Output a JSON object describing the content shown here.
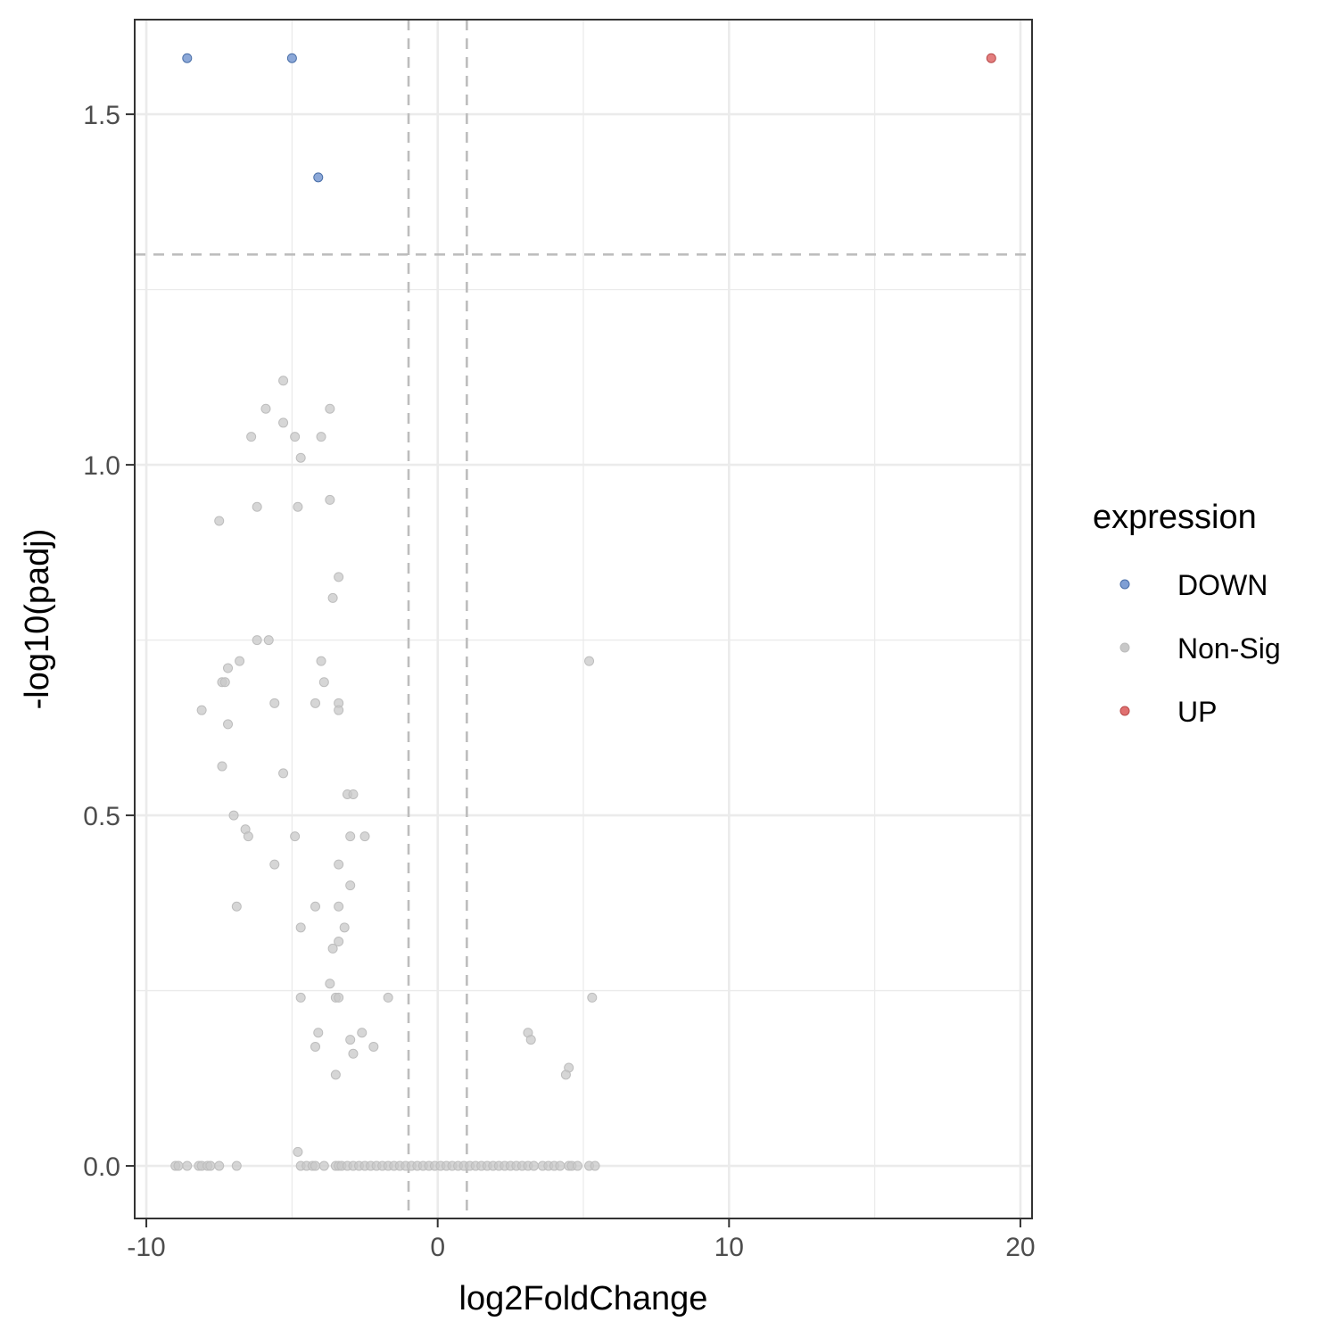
{
  "chart_data": {
    "type": "scatter",
    "title": "",
    "xlabel": "log2FoldChange",
    "ylabel": "-log10(padj)",
    "xlim": [
      -10.4,
      20.4
    ],
    "ylim": [
      -0.075,
      1.635
    ],
    "xticks": [
      -10,
      0,
      10,
      20
    ],
    "xtick_labels": [
      "-10",
      "0",
      "10",
      "20"
    ],
    "yticks": [
      0.0,
      0.5,
      1.0,
      1.5
    ],
    "ytick_labels": [
      "0.0",
      "0.5",
      "1.0",
      "1.5"
    ],
    "grid": true,
    "thresholds": {
      "log2fc": [
        -1,
        1
      ],
      "neg_log10_padj": 1.3
    },
    "legend": {
      "title": "expression",
      "placement": "right"
    },
    "series": [
      {
        "name": "DOWN",
        "color": "#7f9fd4",
        "points": [
          [
            -8.6,
            1.58
          ],
          [
            -5.0,
            1.58
          ],
          [
            -4.1,
            1.41
          ]
        ]
      },
      {
        "name": "Non-Sig",
        "color": "#c8c8c8",
        "points": [
          [
            -5.3,
            1.12
          ],
          [
            -5.9,
            1.08
          ],
          [
            -3.7,
            1.08
          ],
          [
            -5.3,
            1.06
          ],
          [
            -6.4,
            1.04
          ],
          [
            -4.9,
            1.04
          ],
          [
            -4.0,
            1.04
          ],
          [
            -4.7,
            1.01
          ],
          [
            -3.7,
            0.95
          ],
          [
            -6.2,
            0.94
          ],
          [
            -4.8,
            0.94
          ],
          [
            -7.5,
            0.92
          ],
          [
            -3.4,
            0.84
          ],
          [
            -3.6,
            0.81
          ],
          [
            -6.2,
            0.75
          ],
          [
            -5.8,
            0.75
          ],
          [
            -6.8,
            0.72
          ],
          [
            -7.2,
            0.71
          ],
          [
            5.2,
            0.72
          ],
          [
            -4.0,
            0.72
          ],
          [
            -7.4,
            0.69
          ],
          [
            -7.3,
            0.69
          ],
          [
            -3.9,
            0.69
          ],
          [
            -5.6,
            0.66
          ],
          [
            -4.2,
            0.66
          ],
          [
            -3.4,
            0.66
          ],
          [
            -3.4,
            0.65
          ],
          [
            -8.1,
            0.65
          ],
          [
            -7.2,
            0.63
          ],
          [
            -7.4,
            0.57
          ],
          [
            -5.3,
            0.56
          ],
          [
            -3.1,
            0.53
          ],
          [
            -2.9,
            0.53
          ],
          [
            -7.0,
            0.5
          ],
          [
            -6.6,
            0.48
          ],
          [
            -6.5,
            0.47
          ],
          [
            -4.9,
            0.47
          ],
          [
            -3.0,
            0.47
          ],
          [
            -2.5,
            0.47
          ],
          [
            -3.4,
            0.43
          ],
          [
            -5.6,
            0.43
          ],
          [
            -3.0,
            0.4
          ],
          [
            -6.9,
            0.37
          ],
          [
            -4.2,
            0.37
          ],
          [
            -3.4,
            0.37
          ],
          [
            -4.7,
            0.34
          ],
          [
            -3.2,
            0.34
          ],
          [
            -3.4,
            0.32
          ],
          [
            -3.6,
            0.31
          ],
          [
            -3.7,
            0.26
          ],
          [
            -4.7,
            0.24
          ],
          [
            -3.5,
            0.24
          ],
          [
            -3.4,
            0.24
          ],
          [
            -1.7,
            0.24
          ],
          [
            5.3,
            0.24
          ],
          [
            -4.1,
            0.19
          ],
          [
            -2.6,
            0.19
          ],
          [
            3.1,
            0.19
          ],
          [
            -3.0,
            0.18
          ],
          [
            3.2,
            0.18
          ],
          [
            -4.2,
            0.17
          ],
          [
            -2.2,
            0.17
          ],
          [
            -2.9,
            0.16
          ],
          [
            4.5,
            0.14
          ],
          [
            4.4,
            0.13
          ],
          [
            -3.5,
            0.13
          ],
          [
            -4.8,
            0.02
          ],
          [
            -9.0,
            0.0
          ],
          [
            -8.9,
            0.0
          ],
          [
            -8.6,
            0.0
          ],
          [
            -8.2,
            0.0
          ],
          [
            -8.1,
            0.0
          ],
          [
            -7.9,
            0.0
          ],
          [
            -7.8,
            0.0
          ],
          [
            -7.5,
            0.0
          ],
          [
            -6.9,
            0.0
          ],
          [
            -4.7,
            0.0
          ],
          [
            -4.5,
            0.0
          ],
          [
            -4.3,
            0.0
          ],
          [
            -4.2,
            0.0
          ],
          [
            -3.9,
            0.0
          ],
          [
            -3.5,
            0.0
          ],
          [
            -3.4,
            0.0
          ],
          [
            -3.3,
            0.0
          ],
          [
            -3.1,
            0.0
          ],
          [
            -2.9,
            0.0
          ],
          [
            -2.7,
            0.0
          ],
          [
            -2.5,
            0.0
          ],
          [
            -2.3,
            0.0
          ],
          [
            -2.1,
            0.0
          ],
          [
            -1.9,
            0.0
          ],
          [
            -1.7,
            0.0
          ],
          [
            -1.5,
            0.0
          ],
          [
            -1.3,
            0.0
          ],
          [
            -1.1,
            0.0
          ],
          [
            -0.9,
            0.0
          ],
          [
            -0.7,
            0.0
          ],
          [
            -0.5,
            0.0
          ],
          [
            -0.3,
            0.0
          ],
          [
            -0.1,
            0.0
          ],
          [
            0.1,
            0.0
          ],
          [
            0.3,
            0.0
          ],
          [
            0.5,
            0.0
          ],
          [
            0.7,
            0.0
          ],
          [
            0.9,
            0.0
          ],
          [
            1.1,
            0.0
          ],
          [
            1.3,
            0.0
          ],
          [
            1.5,
            0.0
          ],
          [
            1.7,
            0.0
          ],
          [
            1.9,
            0.0
          ],
          [
            2.1,
            0.0
          ],
          [
            2.3,
            0.0
          ],
          [
            2.5,
            0.0
          ],
          [
            2.7,
            0.0
          ],
          [
            2.9,
            0.0
          ],
          [
            3.1,
            0.0
          ],
          [
            3.3,
            0.0
          ],
          [
            3.6,
            0.0
          ],
          [
            3.8,
            0.0
          ],
          [
            4.0,
            0.0
          ],
          [
            4.2,
            0.0
          ],
          [
            4.5,
            0.0
          ],
          [
            4.6,
            0.0
          ],
          [
            4.8,
            0.0
          ],
          [
            5.2,
            0.0
          ],
          [
            5.4,
            0.0
          ]
        ]
      },
      {
        "name": "UP",
        "color": "#e07070",
        "points": [
          [
            19.0,
            1.58
          ]
        ]
      }
    ]
  }
}
